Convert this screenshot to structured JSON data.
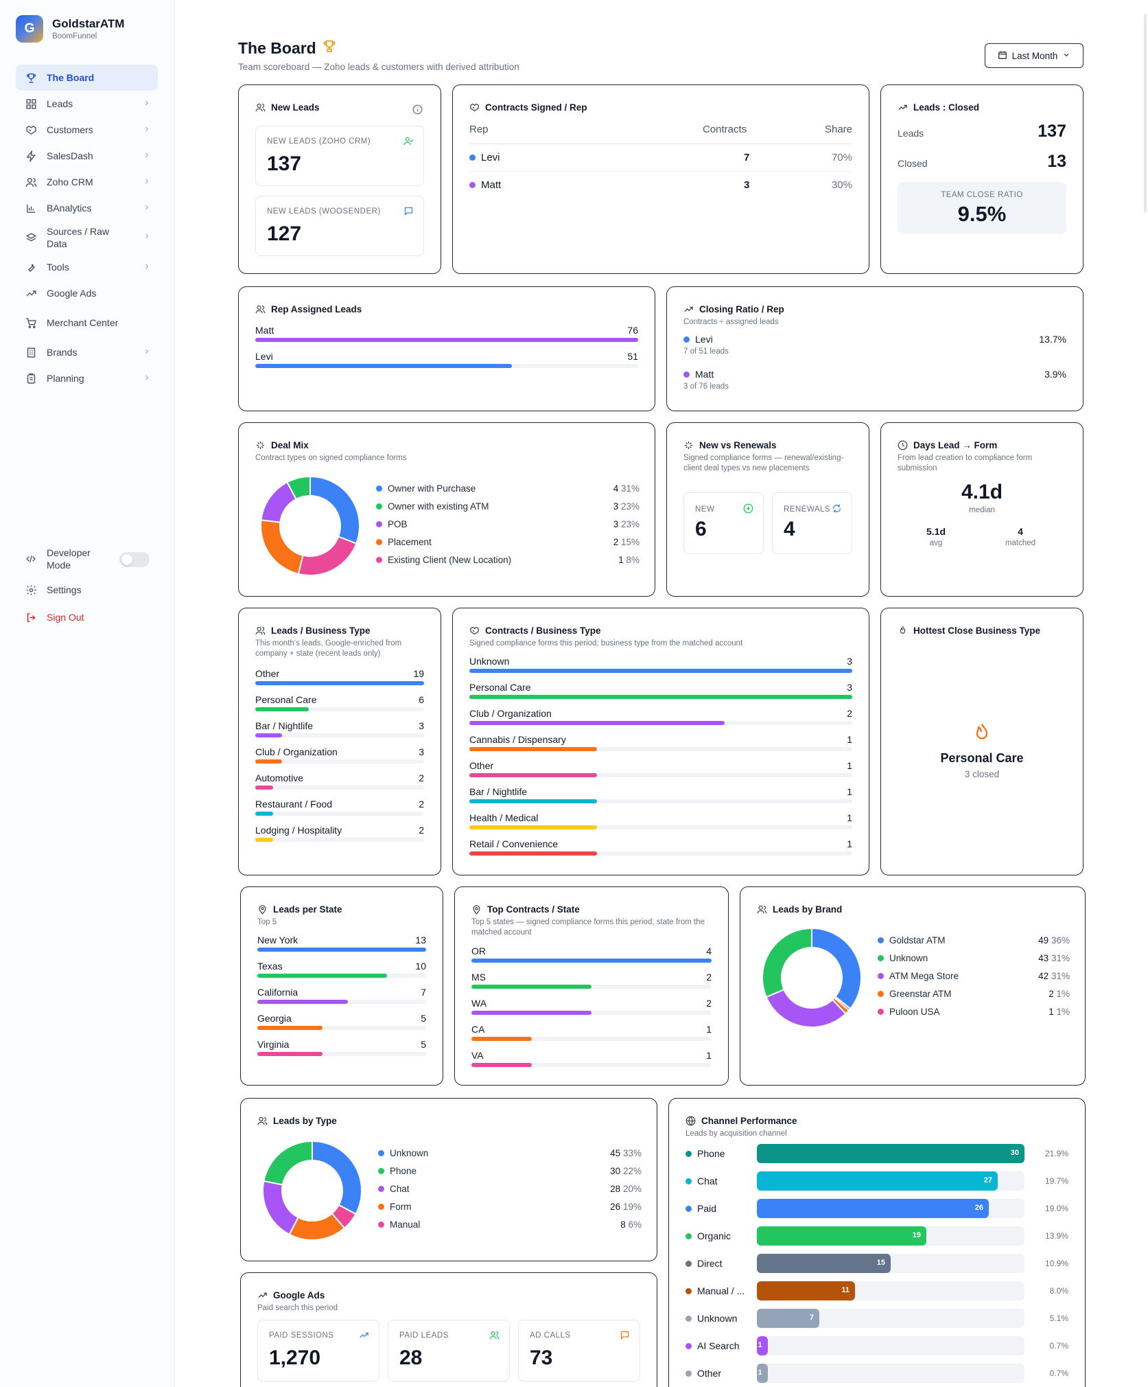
{
  "app": {
    "name": "GoldstarATM",
    "subtitle": "BoomFunnel",
    "logo_letter": "G"
  },
  "sidebar": {
    "items": [
      {
        "label": "The Board",
        "icon": "trophy-icon",
        "active": true,
        "chevron": false
      },
      {
        "label": "Leads",
        "icon": "grid-icon",
        "chevron": true
      },
      {
        "label": "Customers",
        "icon": "handshake-icon",
        "chevron": true
      },
      {
        "label": "SalesDash",
        "icon": "bolt-icon",
        "chevron": true
      },
      {
        "label": "Zoho CRM",
        "icon": "users-icon",
        "chevron": true
      },
      {
        "label": "BAnalytics",
        "icon": "bar-chart-icon",
        "chevron": true
      },
      {
        "label": "Sources / Raw Data",
        "icon": "layers-icon",
        "chevron": true
      },
      {
        "label": "Tools",
        "icon": "wrench-icon",
        "chevron": true
      },
      {
        "label": "Google Ads",
        "icon": "trend-icon",
        "chevron": false
      },
      {
        "label": "Merchant Center",
        "icon": "cart-icon",
        "chevron": false
      },
      {
        "label": "Brands",
        "icon": "building-icon",
        "chevron": true
      },
      {
        "label": "Planning",
        "icon": "clipboard-icon",
        "chevron": true
      }
    ],
    "developer_mode": "Developer Mode",
    "settings": "Settings",
    "sign_out": "Sign Out"
  },
  "header": {
    "title": "The Board",
    "subtitle": "Team scoreboard — Zoho leads & customers with derived attribution",
    "period": "Last Month"
  },
  "new_leads": {
    "title": "New Leads",
    "zoho_label": "NEW LEADS (ZOHO CRM)",
    "zoho_value": "137",
    "woo_label": "NEW LEADS (WOOSENDER)",
    "woo_value": "127"
  },
  "contracts_rep": {
    "title": "Contracts Signed / Rep",
    "col_rep": "Rep",
    "col_contracts": "Contracts",
    "col_share": "Share",
    "rows": [
      {
        "name": "Levi",
        "contracts": "7",
        "share": "70%",
        "color": "#3b82f6"
      },
      {
        "name": "Matt",
        "contracts": "3",
        "share": "30%",
        "color": "#a855f7"
      }
    ]
  },
  "leads_closed": {
    "title": "Leads : Closed",
    "leads_label": "Leads",
    "leads_value": "137",
    "closed_label": "Closed",
    "closed_value": "13",
    "ratio_label": "TEAM CLOSE RATIO",
    "ratio_value": "9.5%"
  },
  "rep_assigned": {
    "title": "Rep Assigned Leads",
    "rows": [
      {
        "name": "Matt",
        "value": "76",
        "fraction": 1.0,
        "color": "#a855f7"
      },
      {
        "name": "Levi",
        "value": "51",
        "fraction": 0.671,
        "color": "#3b82f6"
      }
    ]
  },
  "closing_ratio": {
    "title": "Closing Ratio / Rep",
    "subtitle": "Contracts ÷ assigned leads",
    "rows": [
      {
        "name": "Levi",
        "detail": "7 of 51 leads",
        "ratio": "13.7%",
        "color": "#3b82f6"
      },
      {
        "name": "Matt",
        "detail": "3 of 76 leads",
        "ratio": "3.9%",
        "color": "#a855f7"
      }
    ]
  },
  "deal_mix": {
    "title": "Deal Mix",
    "subtitle": "Contract types on signed compliance forms",
    "items": [
      {
        "label": "Owner with Purchase",
        "count": "4",
        "pct": "31%",
        "value": 4,
        "color": "#3b82f6"
      },
      {
        "label": "Owner with existing ATM",
        "count": "3",
        "pct": "23%",
        "value": 3,
        "color": "#ec4899"
      },
      {
        "label": "POB",
        "count": "3",
        "pct": "23%",
        "value": 3,
        "color": "#f97316"
      },
      {
        "label": "Placement",
        "count": "2",
        "pct": "15%",
        "value": 2,
        "color": "#a855f7"
      },
      {
        "label": "Existing Client (New Location)",
        "count": "1",
        "pct": "8%",
        "value": 1,
        "color": "#22c55e"
      }
    ],
    "legend_colors": [
      "#3b82f6",
      "#22c55e",
      "#a855f7",
      "#f97316",
      "#ec4899"
    ]
  },
  "new_renewals": {
    "title": "New vs Renewals",
    "subtitle": "Signed compliance forms — renewal/existing-client deal types vs new placements",
    "new_label": "NEW",
    "new_value": "6",
    "renew_label": "RENEWALS",
    "renew_value": "4"
  },
  "days_lead": {
    "title": "Days Lead → Form",
    "subtitle": "From lead creation to compliance form submission",
    "median_value": "4.1d",
    "median_label": "median",
    "avg_value": "5.1d",
    "avg_label": "avg",
    "matched_value": "4",
    "matched_label": "matched"
  },
  "leads_business": {
    "title": "Leads / Business Type",
    "subtitle": "This month's leads, Google-enriched from company + state (recent leads only)",
    "rows": [
      {
        "name": "Other",
        "value": "19",
        "fraction": 1.0,
        "color": "#3b82f6"
      },
      {
        "name": "Personal Care",
        "value": "6",
        "fraction": 0.316,
        "color": "#22c55e"
      },
      {
        "name": "Bar / Nightlife",
        "value": "3",
        "fraction": 0.158,
        "color": "#a855f7"
      },
      {
        "name": "Club / Organization",
        "value": "3",
        "fraction": 0.158,
        "color": "#f97316"
      },
      {
        "name": "Automotive",
        "value": "2",
        "fraction": 0.105,
        "color": "#ec4899"
      },
      {
        "name": "Restaurant / Food",
        "value": "2",
        "fraction": 0.105,
        "color": "#06b6d4"
      },
      {
        "name": "Lodging / Hospitality",
        "value": "2",
        "fraction": 0.105,
        "color": "#facc15"
      }
    ]
  },
  "contracts_business": {
    "title": "Contracts / Business Type",
    "subtitle": "Signed compliance forms this period; business type from the matched account",
    "rows": [
      {
        "name": "Unknown",
        "value": "3",
        "fraction": 1.0,
        "color": "#3b82f6"
      },
      {
        "name": "Personal Care",
        "value": "3",
        "fraction": 1.0,
        "color": "#22c55e"
      },
      {
        "name": "Club / Organization",
        "value": "2",
        "fraction": 0.667,
        "color": "#a855f7"
      },
      {
        "name": "Cannabis / Dispensary",
        "value": "1",
        "fraction": 0.333,
        "color": "#f97316"
      },
      {
        "name": "Other",
        "value": "1",
        "fraction": 0.333,
        "color": "#ec4899"
      },
      {
        "name": "Bar / Nightlife",
        "value": "1",
        "fraction": 0.333,
        "color": "#06b6d4"
      },
      {
        "name": "Health / Medical",
        "value": "1",
        "fraction": 0.333,
        "color": "#facc15"
      },
      {
        "name": "Retail / Convenience",
        "value": "1",
        "fraction": 0.333,
        "color": "#ef4444"
      }
    ]
  },
  "hottest": {
    "title": "Hottest Close Business Type",
    "name": "Personal Care",
    "detail": "3 closed"
  },
  "leads_state": {
    "title": "Leads per State",
    "subtitle": "Top 5",
    "rows": [
      {
        "name": "New York",
        "value": "13",
        "fraction": 1.0,
        "color": "#3b82f6"
      },
      {
        "name": "Texas",
        "value": "10",
        "fraction": 0.769,
        "color": "#22c55e"
      },
      {
        "name": "California",
        "value": "7",
        "fraction": 0.538,
        "color": "#a855f7"
      },
      {
        "name": "Georgia",
        "value": "5",
        "fraction": 0.385,
        "color": "#f97316"
      },
      {
        "name": "Virginia",
        "value": "5",
        "fraction": 0.385,
        "color": "#ec4899"
      }
    ]
  },
  "top_contracts_state": {
    "title": "Top Contracts / State",
    "subtitle": "Top 5 states — signed compliance forms this period, state from the matched account",
    "rows": [
      {
        "name": "OR",
        "value": "4",
        "fraction": 1.0,
        "color": "#3b82f6"
      },
      {
        "name": "MS",
        "value": "2",
        "fraction": 0.5,
        "color": "#22c55e"
      },
      {
        "name": "WA",
        "value": "2",
        "fraction": 0.5,
        "color": "#a855f7"
      },
      {
        "name": "CA",
        "value": "1",
        "fraction": 0.25,
        "color": "#f97316"
      },
      {
        "name": "VA",
        "value": "1",
        "fraction": 0.25,
        "color": "#ec4899"
      }
    ]
  },
  "leads_brand": {
    "title": "Leads by Brand",
    "items": [
      {
        "label": "Goldstar ATM",
        "count": "49",
        "pct": "36%",
        "value": 49,
        "color": "#3b82f6"
      },
      {
        "label": "Unknown",
        "count": "43",
        "pct": "31%",
        "value": 43,
        "color": "#22c55e"
      },
      {
        "label": "ATM Mega Store",
        "count": "42",
        "pct": "31%",
        "value": 42,
        "color": "#a855f7"
      },
      {
        "label": "Greenstar ATM",
        "count": "2",
        "pct": "1%",
        "value": 2,
        "color": "#f97316"
      },
      {
        "label": "Puloon USA",
        "count": "1",
        "pct": "1%",
        "value": 1,
        "color": "#ec4899"
      }
    ],
    "ring_order": [
      0,
      4,
      3,
      2,
      1
    ]
  },
  "leads_type": {
    "title": "Leads by Type",
    "items": [
      {
        "label": "Unknown",
        "count": "45",
        "pct": "33%",
        "value": 45,
        "color": "#3b82f6"
      },
      {
        "label": "Phone",
        "count": "30",
        "pct": "22%",
        "value": 30,
        "color": "#22c55e"
      },
      {
        "label": "Chat",
        "count": "28",
        "pct": "20%",
        "value": 28,
        "color": "#a855f7"
      },
      {
        "label": "Form",
        "count": "26",
        "pct": "19%",
        "value": 26,
        "color": "#f97316"
      },
      {
        "label": "Manual",
        "count": "8",
        "pct": "6%",
        "value": 8,
        "color": "#ec4899"
      }
    ],
    "ring_order": [
      0,
      4,
      3,
      2,
      1
    ]
  },
  "channel_perf": {
    "title": "Channel Performance",
    "subtitle": "Leads by acquisition channel",
    "rows": [
      {
        "name": "Phone",
        "value": "30",
        "share": "21.9%",
        "num": 30,
        "color": "#0d9488"
      },
      {
        "name": "Chat",
        "value": "27",
        "share": "19.7%",
        "num": 27,
        "color": "#06b6d4"
      },
      {
        "name": "Paid",
        "value": "26",
        "share": "19.0%",
        "num": 26,
        "color": "#3b82f6"
      },
      {
        "name": "Organic",
        "value": "19",
        "share": "13.9%",
        "num": 19,
        "color": "#22c55e"
      },
      {
        "name": "Direct",
        "value": "15",
        "share": "10.9%",
        "num": 15,
        "color": "#64748b"
      },
      {
        "name": "Manual / ...",
        "value": "11",
        "share": "8.0%",
        "num": 11,
        "color": "#b45309"
      },
      {
        "name": "Unknown",
        "value": "7",
        "share": "5.1%",
        "num": 7,
        "color": "#94a3b8"
      },
      {
        "name": "AI Search",
        "value": "1",
        "share": "0.7%",
        "num": 1,
        "color": "#a855f7"
      },
      {
        "name": "Other",
        "value": "1",
        "share": "0.7%",
        "num": 1,
        "color": "#94a3b8"
      }
    ],
    "max": 30
  },
  "google_ads": {
    "title": "Google Ads",
    "subtitle": "Paid search this period",
    "sessions_label": "PAID SESSIONS",
    "sessions_value": "1,270",
    "leads_label": "PAID LEADS",
    "leads_value": "28",
    "calls_label": "AD CALLS",
    "calls_value": "73"
  }
}
